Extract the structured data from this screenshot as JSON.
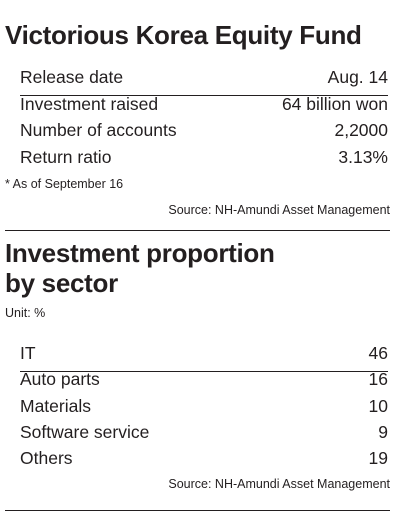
{
  "fund": {
    "title": "Victorious Korea Equity Fund",
    "rows": [
      [
        "Release date",
        "Aug. 14"
      ],
      [
        "Investment raised",
        "64 billion won"
      ],
      [
        "Number of accounts",
        "2,2000"
      ],
      [
        "Return ratio",
        "3.13%"
      ]
    ],
    "note": "* As of September 16",
    "source": "Source: NH-Amundi Asset Management"
  },
  "sector": {
    "title_lines": [
      "Investment proportion",
      "by sector"
    ],
    "unit": "Unit: %",
    "rows": [
      [
        "IT",
        46
      ],
      [
        "Auto parts",
        16
      ],
      [
        "Materials",
        10
      ],
      [
        "Software service",
        9
      ],
      [
        "Others",
        19
      ]
    ],
    "source": "Source: NH-Amundi Asset Management"
  }
}
